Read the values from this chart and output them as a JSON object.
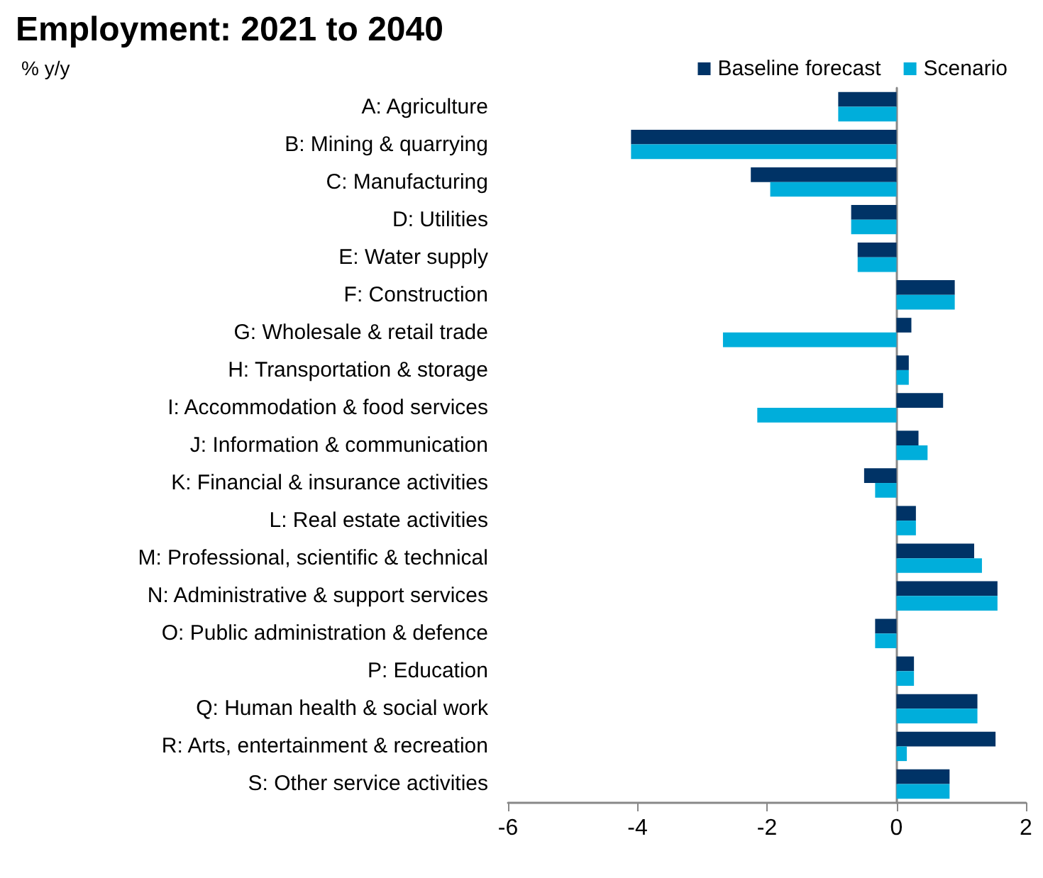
{
  "chart_data": {
    "type": "bar",
    "orientation": "horizontal",
    "title": "Employment: 2021 to 2040",
    "subtitle": "% y/y",
    "categories": [
      "A: Agriculture",
      "B: Mining & quarrying",
      "C: Manufacturing",
      "D: Utilities",
      "E: Water supply",
      "F: Construction",
      "G: Wholesale & retail trade",
      "H: Transportation & storage",
      "I: Accommodation & food services",
      "J: Information & communication",
      "K: Financial & insurance activities",
      "L: Real estate activities",
      "M: Professional, scientific & technical",
      "N: Administrative & support services",
      "O: Public administration & defence",
      "P: Education",
      "Q: Human health & social work",
      "R: Arts, entertainment & recreation",
      "S: Other service activities"
    ],
    "series": [
      {
        "name": "Baseline forecast",
        "color": "#003366",
        "values": [
          -0.9,
          -4.1,
          -2.25,
          -0.7,
          -0.6,
          0.9,
          0.23,
          0.19,
          0.72,
          0.34,
          -0.5,
          0.3,
          1.2,
          1.56,
          -0.33,
          0.27,
          1.25,
          1.53,
          0.82
        ]
      },
      {
        "name": "Scenario",
        "color": "#00aedb",
        "values": [
          -0.9,
          -4.1,
          -1.95,
          -0.7,
          -0.6,
          0.9,
          -2.68,
          0.19,
          -2.15,
          0.48,
          -0.33,
          0.3,
          1.32,
          1.56,
          -0.33,
          0.27,
          1.25,
          0.16,
          0.82
        ]
      }
    ],
    "xlim": [
      -6,
      2
    ],
    "xticks": [
      -6,
      -4,
      -2,
      0,
      2
    ],
    "legend": "top right"
  }
}
